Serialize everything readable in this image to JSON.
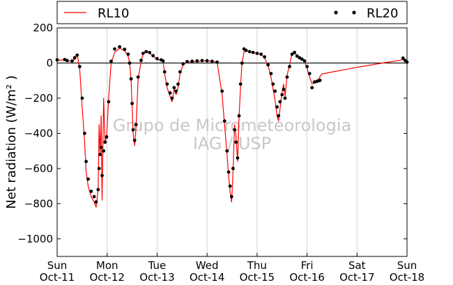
{
  "chart_data": {
    "type": "line",
    "title": "",
    "xlabel": "",
    "ylabel": "Net radiation (W/m² )",
    "ylim": [
      -1100,
      200
    ],
    "yticks": [
      200,
      0,
      -200,
      -400,
      -600,
      -800,
      -1000
    ],
    "ytick_labels": [
      "200",
      "0",
      "−200",
      "−400",
      "−600",
      "−800",
      "−1000"
    ],
    "xlim": [
      0,
      7
    ],
    "xticks": [
      {
        "day": "Sun",
        "date": "Oct-11"
      },
      {
        "day": "Mon",
        "date": "Oct-12"
      },
      {
        "day": "Tue",
        "date": "Oct-13"
      },
      {
        "day": "Wed",
        "date": "Oct-14"
      },
      {
        "day": "Thu",
        "date": "Oct-15"
      },
      {
        "day": "Fri",
        "date": "Oct-16"
      },
      {
        "day": "Sat",
        "date": "Oct-17"
      },
      {
        "day": "Sun",
        "date": "Oct-18"
      }
    ],
    "grid": "vertical",
    "zero_line": true,
    "legend_placement": "top, outside",
    "watermark": [
      "Grupo de Micrometeorologia",
      "IAG / USP"
    ],
    "series": [
      {
        "name": "RL10",
        "style": "line",
        "color": "#ff0000",
        "x": [
          0.0,
          0.15,
          0.2,
          0.3,
          0.35,
          0.4,
          0.45,
          0.5,
          0.55,
          0.58,
          0.62,
          0.68,
          0.74,
          0.78,
          0.82,
          0.84,
          0.86,
          0.88,
          0.9,
          0.93,
          0.96,
          0.99,
          1.03,
          1.08,
          1.15,
          1.25,
          1.35,
          1.42,
          1.45,
          1.48,
          1.5,
          1.52,
          1.55,
          1.58,
          1.62,
          1.68,
          1.72,
          1.78,
          1.85,
          1.92,
          2.0,
          2.08,
          2.12,
          2.15,
          2.2,
          2.26,
          2.3,
          2.34,
          2.38,
          2.42,
          2.46,
          2.52,
          2.6,
          2.7,
          2.8,
          2.9,
          3.0,
          3.1,
          3.2,
          3.3,
          3.35,
          3.4,
          3.43,
          3.46,
          3.49,
          3.52,
          3.55,
          3.58,
          3.61,
          3.64,
          3.67,
          3.7,
          3.74,
          3.78,
          3.85,
          3.92,
          4.0,
          4.08,
          4.15,
          4.22,
          4.28,
          4.32,
          4.36,
          4.4,
          4.43,
          4.46,
          4.5,
          4.53,
          4.56,
          4.6,
          4.65,
          4.7,
          4.75,
          4.8,
          4.85,
          4.9,
          4.95,
          5.0,
          5.05,
          5.1,
          5.15,
          5.2,
          5.25,
          5.26,
          5.3,
          5.55,
          5.8,
          6.05,
          6.3,
          6.55,
          6.85,
          6.92,
          7.0
        ],
        "y": [
          15,
          18,
          12,
          10,
          20,
          50,
          -30,
          -250,
          -450,
          -620,
          -700,
          -760,
          -790,
          -820,
          -720,
          -350,
          -520,
          -300,
          -780,
          -200,
          -450,
          -420,
          -200,
          0,
          60,
          85,
          70,
          40,
          0,
          -100,
          -250,
          -400,
          -470,
          -360,
          -90,
          10,
          50,
          65,
          55,
          40,
          20,
          15,
          10,
          -60,
          -140,
          -190,
          -220,
          -150,
          -180,
          -140,
          -60,
          -10,
          5,
          8,
          10,
          12,
          12,
          10,
          5,
          -180,
          -350,
          -520,
          -640,
          -730,
          -790,
          -620,
          -350,
          -420,
          -560,
          -310,
          -130,
          0,
          65,
          70,
          65,
          58,
          55,
          50,
          30,
          -15,
          -80,
          -150,
          -210,
          -300,
          -330,
          -260,
          -170,
          -120,
          -190,
          -70,
          -10,
          55,
          60,
          40,
          25,
          20,
          10,
          -30,
          -80,
          -118,
          -112,
          -98,
          -87,
          -75,
          -62,
          -48,
          -35,
          -22,
          -10,
          2,
          15,
          20,
          5
        ]
      },
      {
        "name": "RL20",
        "style": "dots",
        "color": "#000000",
        "x": [
          0.0,
          0.15,
          0.2,
          0.3,
          0.35,
          0.4,
          0.45,
          0.5,
          0.55,
          0.58,
          0.62,
          0.68,
          0.74,
          0.78,
          0.82,
          0.84,
          0.86,
          0.88,
          0.9,
          0.93,
          0.96,
          0.99,
          1.03,
          1.08,
          1.15,
          1.25,
          1.35,
          1.42,
          1.45,
          1.48,
          1.5,
          1.52,
          1.55,
          1.58,
          1.62,
          1.68,
          1.72,
          1.78,
          1.85,
          1.92,
          2.0,
          2.08,
          2.12,
          2.15,
          2.2,
          2.26,
          2.3,
          2.34,
          2.38,
          2.42,
          2.46,
          2.52,
          2.6,
          2.7,
          2.8,
          2.9,
          3.0,
          3.1,
          3.2,
          3.3,
          3.35,
          3.4,
          3.43,
          3.46,
          3.49,
          3.52,
          3.55,
          3.58,
          3.61,
          3.64,
          3.67,
          3.7,
          3.74,
          3.78,
          3.85,
          3.92,
          4.0,
          4.08,
          4.15,
          4.22,
          4.28,
          4.32,
          4.36,
          4.4,
          4.43,
          4.46,
          4.5,
          4.53,
          4.56,
          4.6,
          4.65,
          4.7,
          4.75,
          4.8,
          4.85,
          4.9,
          4.95,
          5.0,
          5.05,
          5.1,
          5.15,
          5.2,
          5.25,
          5.26,
          6.92,
          6.96,
          7.0
        ],
        "y": [
          18,
          20,
          14,
          12,
          30,
          45,
          -20,
          -200,
          -400,
          -560,
          -660,
          -730,
          -760,
          -790,
          -720,
          -600,
          -520,
          -480,
          -640,
          -500,
          -450,
          -420,
          -220,
          10,
          80,
          92,
          78,
          50,
          0,
          -90,
          -230,
          -380,
          -440,
          -350,
          -80,
          15,
          55,
          65,
          60,
          42,
          25,
          18,
          12,
          -50,
          -120,
          -170,
          -200,
          -140,
          -160,
          -120,
          -50,
          -5,
          8,
          10,
          12,
          14,
          13,
          10,
          5,
          -160,
          -330,
          -500,
          -620,
          -700,
          -760,
          -600,
          -380,
          -450,
          -540,
          -300,
          -120,
          0,
          80,
          72,
          65,
          60,
          55,
          50,
          35,
          -10,
          -60,
          -120,
          -160,
          -250,
          -300,
          -220,
          -180,
          -150,
          -200,
          -80,
          -20,
          50,
          60,
          40,
          30,
          22,
          12,
          -20,
          -60,
          -140,
          -108,
          -104,
          -100,
          -98,
          28,
          15,
          5
        ]
      }
    ]
  }
}
